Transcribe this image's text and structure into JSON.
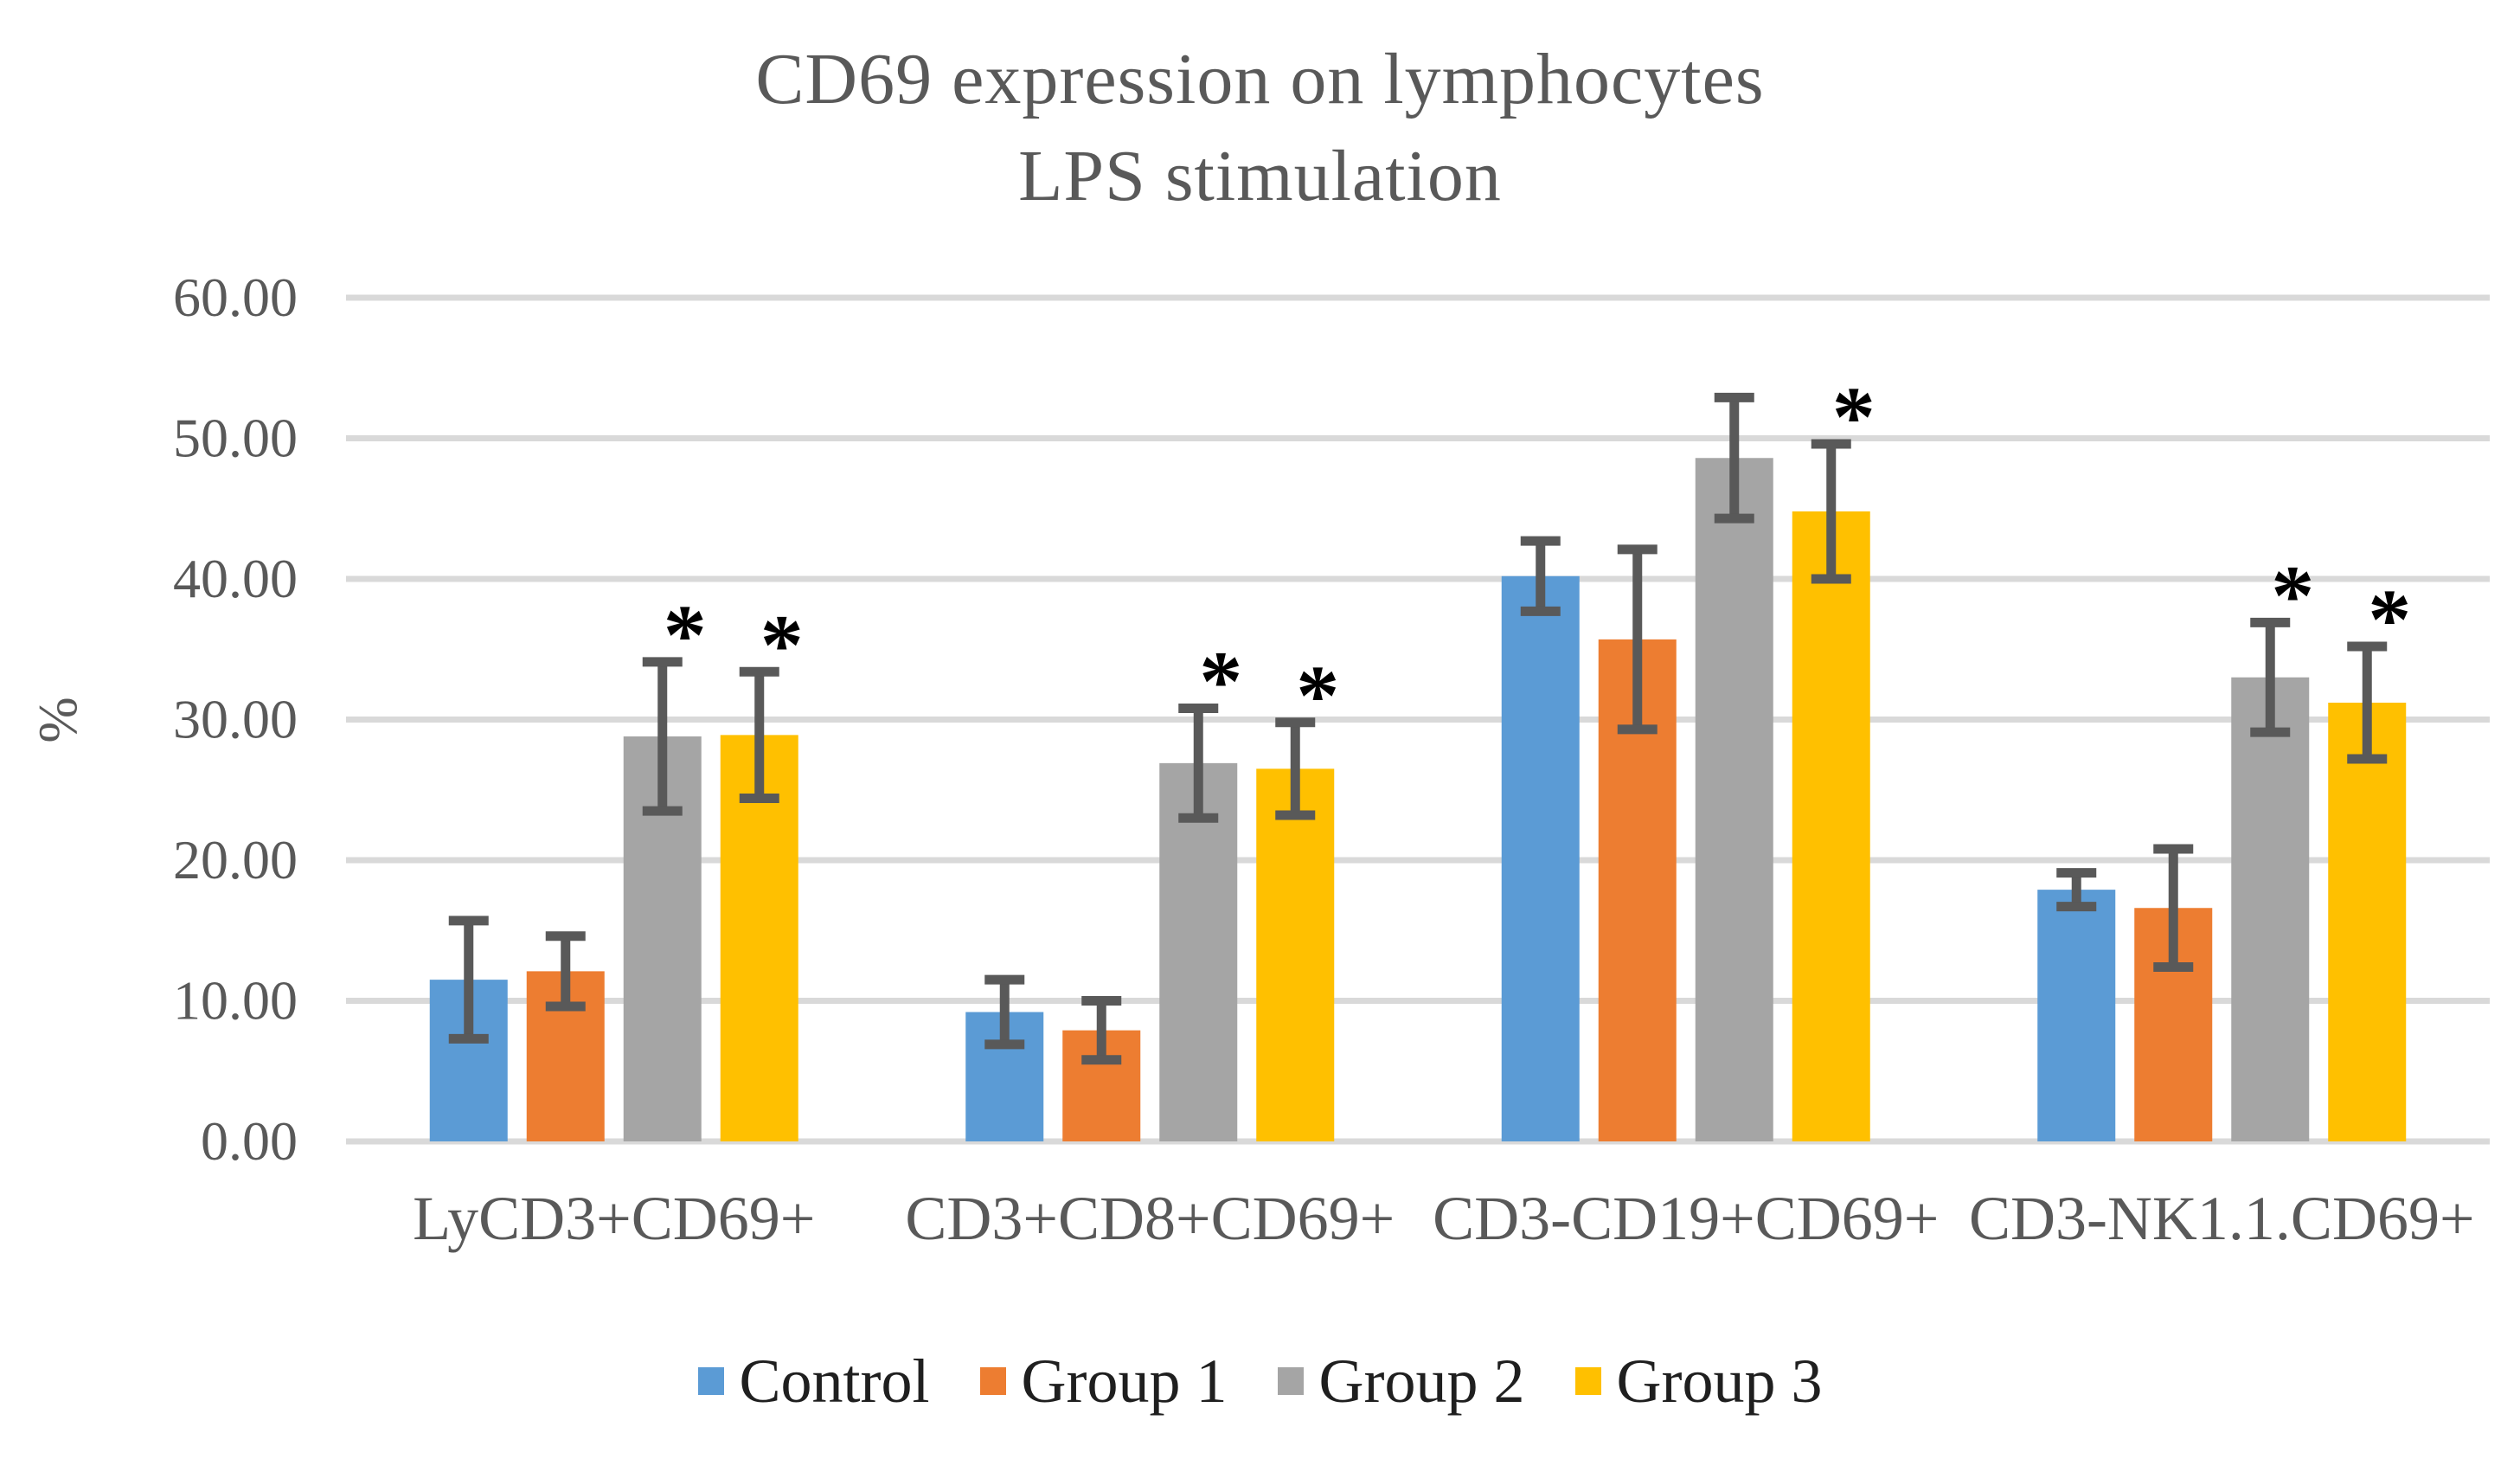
{
  "chart_data": {
    "type": "bar",
    "title_line1": "CD69 expression on lymphocytes",
    "title_line2": "LPS stimulation",
    "ylabel": "%",
    "ylim": [
      0,
      60
    ],
    "y_tick_step": 10,
    "y_tick_labels": [
      "0.00",
      "10.00",
      "20.00",
      "30.00",
      "40.00",
      "50.00",
      "60.00"
    ],
    "grid": true,
    "legend_position": "bottom",
    "categories": [
      "LyCD3+CD69+",
      "CD3+CD8+CD69+",
      "CD3-CD19+CD69+",
      "CD3-NK1.1.CD69+"
    ],
    "series": [
      {
        "name": "Control",
        "color": "#5B9BD5",
        "values": [
          11.5,
          9.2,
          40.2,
          17.9
        ],
        "errors": [
          4.2,
          2.3,
          2.5,
          1.2
        ],
        "significant": [
          false,
          false,
          false,
          false
        ]
      },
      {
        "name": "Group 1",
        "color": "#ED7D31",
        "values": [
          12.1,
          7.9,
          35.7,
          16.6
        ],
        "errors": [
          2.5,
          2.1,
          6.4,
          4.2
        ],
        "significant": [
          false,
          false,
          false,
          false
        ]
      },
      {
        "name": "Group 2",
        "color": "#A5A5A5",
        "values": [
          28.8,
          26.9,
          48.6,
          33.0
        ],
        "errors": [
          5.3,
          3.9,
          4.3,
          3.9
        ],
        "significant": [
          true,
          true,
          false,
          true
        ]
      },
      {
        "name": "Group 3",
        "color": "#FFC000",
        "values": [
          28.9,
          26.5,
          44.8,
          31.2
        ],
        "errors": [
          4.5,
          3.3,
          4.8,
          4.0
        ],
        "significant": [
          true,
          true,
          true,
          true
        ]
      }
    ],
    "significance_marker": "*",
    "significance_color": "#000000",
    "grid_color": "#D9D9D9",
    "error_bar_color": "#595959",
    "text_color": "#595959",
    "legend_text_color": "#1f1f1f",
    "background_color": "#ffffff"
  }
}
